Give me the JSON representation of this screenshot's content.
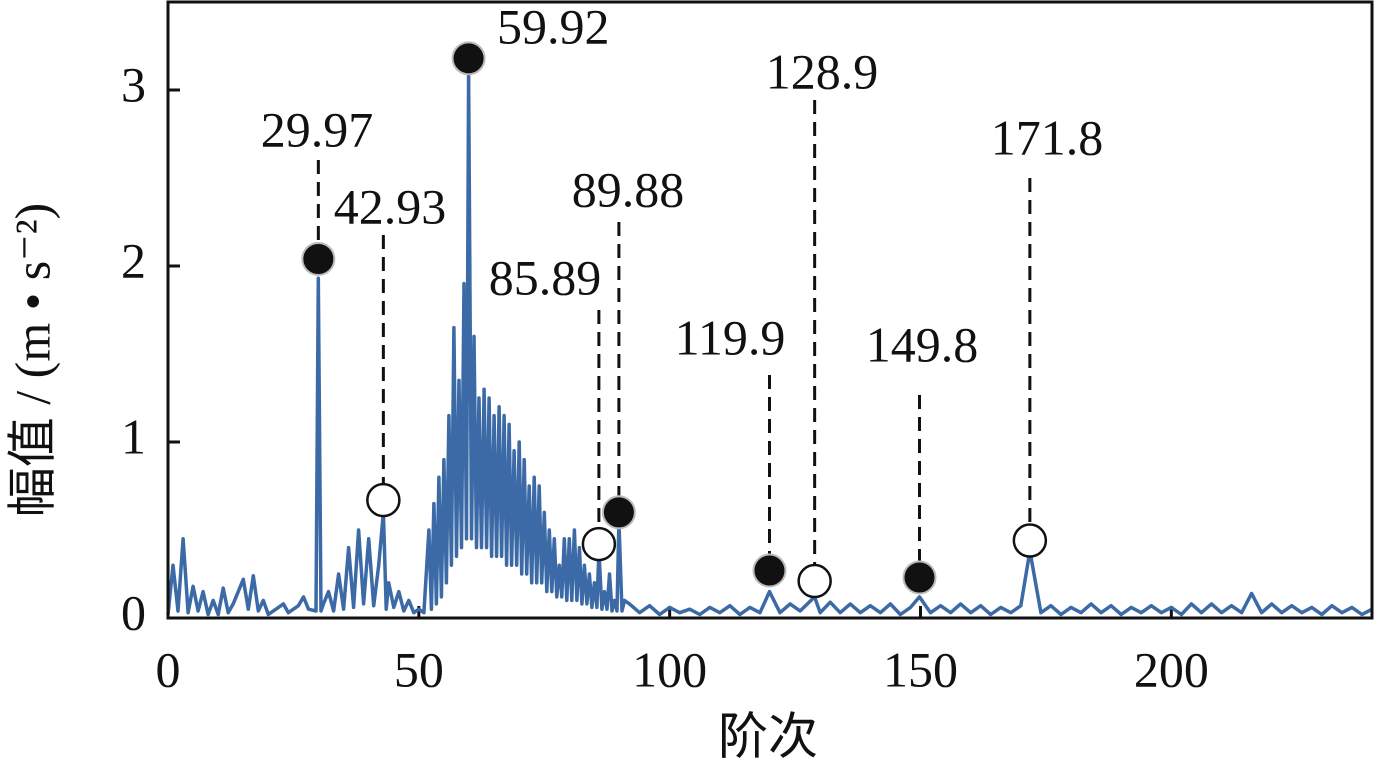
{
  "chart_data": {
    "type": "line",
    "xlabel": "阶次",
    "ylabel": "幅值 / (m • s⁻²)",
    "x": [
      0,
      1,
      2,
      3,
      4,
      5,
      6,
      7,
      8,
      9,
      10,
      11,
      12,
      13,
      15,
      16,
      17,
      18,
      19,
      20,
      22,
      23,
      24,
      26,
      27,
      28,
      29.5,
      29.97,
      30.5,
      31,
      32,
      33,
      34,
      35,
      36,
      37,
      38,
      39,
      40,
      41,
      42,
      42.93,
      43.5,
      44,
      45,
      46,
      47,
      48,
      49,
      50,
      51,
      52,
      52.5,
      53,
      53.5,
      54,
      54.5,
      55,
      55.5,
      56,
      56.5,
      57,
      57.5,
      58,
      58.5,
      59,
      59.5,
      59.92,
      60.5,
      61,
      61.5,
      62,
      62.5,
      63,
      63.5,
      64,
      64.5,
      65,
      65.5,
      66,
      66.5,
      67,
      67.5,
      68,
      68.5,
      69,
      69.5,
      70,
      70.5,
      71,
      71.5,
      72,
      72.5,
      73,
      73.5,
      74,
      74.5,
      75,
      75.5,
      76,
      76.5,
      77,
      77.5,
      78,
      78.5,
      79,
      79.5,
      80,
      80.5,
      81,
      81.5,
      82,
      82.5,
      83,
      83.5,
      84,
      84.5,
      85,
      85.5,
      85.89,
      86.5,
      87,
      87.5,
      88,
      88.5,
      89,
      89.5,
      89.88,
      90.5,
      91,
      92,
      94,
      96,
      98,
      100,
      102,
      104,
      106,
      108,
      110,
      112,
      114,
      116,
      118,
      119.9,
      122,
      124,
      126,
      128.9,
      130,
      132,
      134,
      136,
      138,
      140,
      142,
      144,
      146,
      148,
      149.8,
      152,
      154,
      156,
      158,
      160,
      162,
      164,
      166,
      168,
      170,
      171.8,
      174,
      176,
      178,
      180,
      182,
      184,
      186,
      188,
      190,
      192,
      194,
      196,
      198,
      200,
      202,
      204,
      206,
      208,
      210,
      212,
      214,
      216,
      218,
      220,
      222,
      224,
      226,
      228,
      230,
      232,
      234,
      236,
      238,
      240
    ],
    "series": [
      {
        "color": "#3b6aa6",
        "values": [
          0.02,
          0.3,
          0.04,
          0.45,
          0.03,
          0.18,
          0.04,
          0.15,
          0.02,
          0.1,
          0.02,
          0.17,
          0.03,
          0.08,
          0.22,
          0.05,
          0.24,
          0.04,
          0.1,
          0.02,
          0.06,
          0.08,
          0.03,
          0.07,
          0.12,
          0.05,
          0.04,
          1.93,
          0.04,
          0.08,
          0.15,
          0.04,
          0.25,
          0.05,
          0.4,
          0.06,
          0.5,
          0.08,
          0.45,
          0.07,
          0.3,
          0.6,
          0.05,
          0.2,
          0.06,
          0.15,
          0.04,
          0.1,
          0.03,
          0.05,
          0.03,
          0.5,
          0.05,
          0.65,
          0.08,
          0.8,
          0.12,
          0.9,
          0.2,
          1.15,
          0.3,
          1.65,
          0.35,
          1.35,
          0.4,
          1.9,
          0.45,
          3.1,
          0.45,
          1.6,
          0.4,
          1.25,
          0.4,
          1.3,
          0.4,
          1.25,
          0.35,
          1.15,
          0.35,
          1.2,
          0.35,
          1.15,
          0.3,
          1.1,
          0.3,
          0.95,
          0.3,
          1.0,
          0.25,
          0.9,
          0.25,
          0.75,
          0.2,
          0.8,
          0.2,
          0.75,
          0.2,
          0.6,
          0.15,
          0.5,
          0.15,
          0.45,
          0.12,
          0.3,
          0.12,
          0.45,
          0.1,
          0.45,
          0.1,
          0.5,
          0.1,
          0.4,
          0.08,
          0.3,
          0.08,
          0.25,
          0.06,
          0.2,
          0.06,
          0.38,
          0.05,
          0.15,
          0.05,
          0.25,
          0.04,
          0.1,
          0.04,
          0.55,
          0.04,
          0.1,
          0.08,
          0.03,
          0.07,
          0.02,
          0.06,
          0.03,
          0.05,
          0.02,
          0.06,
          0.03,
          0.07,
          0.02,
          0.06,
          0.03,
          0.15,
          0.03,
          0.08,
          0.04,
          0.12,
          0.03,
          0.09,
          0.03,
          0.08,
          0.03,
          0.07,
          0.03,
          0.08,
          0.02,
          0.06,
          0.12,
          0.03,
          0.07,
          0.03,
          0.08,
          0.03,
          0.07,
          0.02,
          0.06,
          0.03,
          0.07,
          0.38,
          0.03,
          0.07,
          0.02,
          0.06,
          0.03,
          0.08,
          0.03,
          0.07,
          0.02,
          0.06,
          0.03,
          0.07,
          0.03,
          0.06,
          0.02,
          0.08,
          0.03,
          0.08,
          0.03,
          0.07,
          0.03,
          0.14,
          0.03,
          0.08,
          0.03,
          0.07,
          0.03,
          0.06,
          0.02,
          0.07,
          0.03,
          0.06,
          0.02,
          0.05
        ]
      }
    ],
    "annotations": [
      {
        "x": 29.97,
        "y": 2.04,
        "filled": true
      },
      {
        "x": 42.93,
        "y": 0.67,
        "filled": false
      },
      {
        "x": 59.92,
        "y": 3.18,
        "filled": true
      },
      {
        "x": 85.89,
        "y": 0.42,
        "filled": false
      },
      {
        "x": 89.88,
        "y": 0.6,
        "filled": true
      },
      {
        "x": 119.9,
        "y": 0.27,
        "filled": true
      },
      {
        "x": 128.9,
        "y": 0.21,
        "filled": false
      },
      {
        "x": 149.8,
        "y": 0.23,
        "filled": true
      },
      {
        "x": 171.8,
        "y": 0.44,
        "filled": false
      }
    ],
    "xlim": [
      0,
      240
    ],
    "ylim": [
      0,
      3.5
    ],
    "xticks": [
      0,
      50,
      100,
      150,
      200
    ],
    "yticks": [
      0,
      1,
      2,
      3
    ]
  }
}
